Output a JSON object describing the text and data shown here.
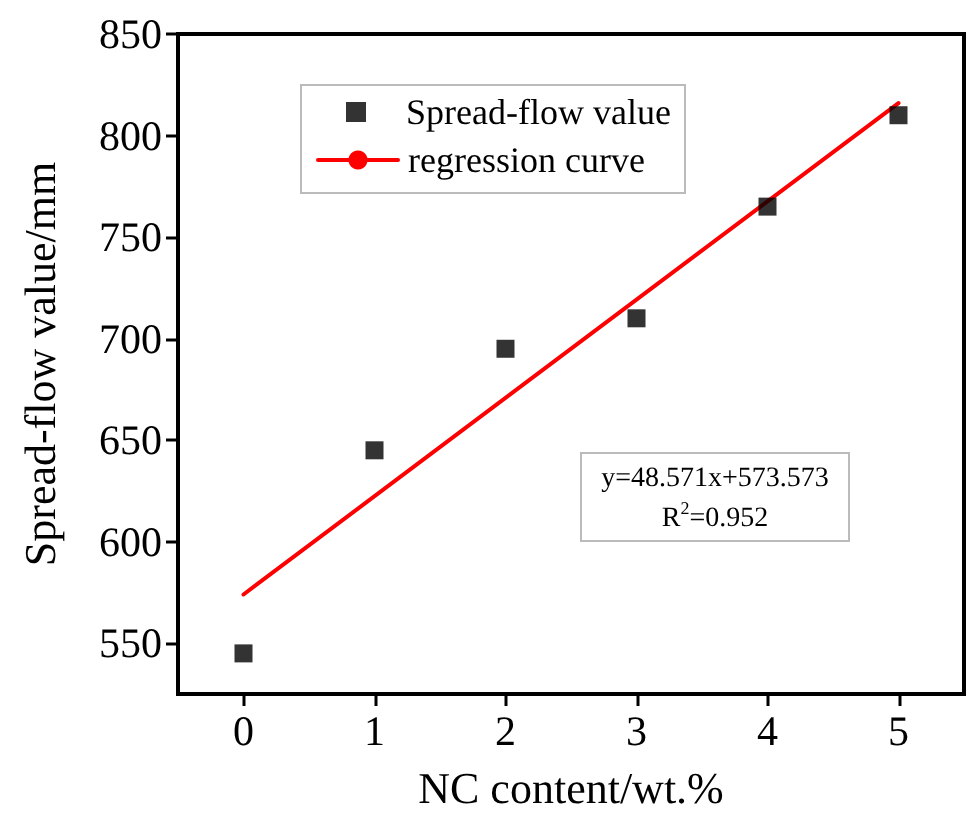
{
  "chart_data": {
    "type": "scatter",
    "xlabel": "NC content/wt.%",
    "ylabel": "Spread-flow value/mm",
    "xlim": [
      -0.5,
      5.5
    ],
    "xticks": [
      0,
      1,
      2,
      3,
      4,
      5
    ],
    "ylim": [
      525,
      850
    ],
    "yticks": [
      550,
      600,
      650,
      700,
      750,
      800,
      850
    ],
    "series": [
      {
        "name": "Spread-flow value",
        "color": "#000000",
        "marker": "square",
        "x": [
          0,
          1,
          2,
          3,
          4,
          5
        ],
        "values": [
          545,
          645,
          695,
          710,
          765,
          810
        ]
      },
      {
        "name": "regression curve",
        "type": "line",
        "color": "#ff0000",
        "marker": "none",
        "line_style": "solid",
        "x": [
          0,
          5
        ],
        "values": [
          574,
          816
        ]
      }
    ],
    "annotations": [
      "y=48.571x+573.573",
      "R$^{2}$=0.952"
    ],
    "legend": "top left",
    "grid": false
  }
}
